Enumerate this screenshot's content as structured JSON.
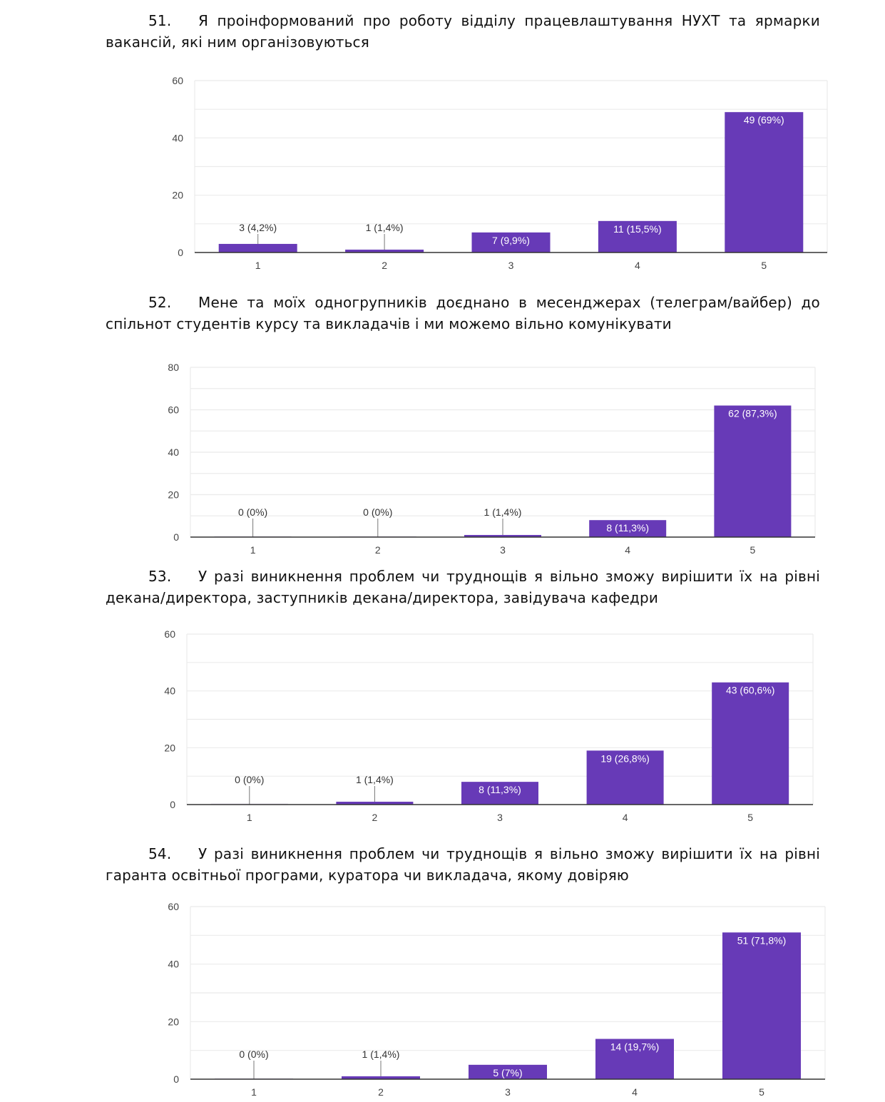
{
  "colors": {
    "bar": "#673ab7",
    "grid": "#ebebeb",
    "axis": "#333333",
    "text": "#111111"
  },
  "questions": [
    {
      "number": "51.",
      "text": "Я проінформований про роботу відділу працевлаштування НУХТ та ярмарки вакансій, які ним організовуються"
    },
    {
      "number": "52.",
      "text": "Мене та моїх одногрупників доєднано в месенджерах (телеграм/вайбер) до спільнот студентів курсу та викладачів і ми можемо вільно комунікувати"
    },
    {
      "number": "53.",
      "text": "У разі виникнення проблем чи труднощів я вільно зможу вирішити їх на рівні декана/директора, заступників декана/директора, завідувача кафедри"
    },
    {
      "number": "54.",
      "text": "У разі виникнення проблем чи труднощів я вільно зможу вирішити їх на рівні гаранта освітньої програми, куратора чи викладача, якому довіряю"
    }
  ],
  "chart_data": [
    {
      "type": "bar",
      "title": "",
      "xlabel": "",
      "ylabel": "",
      "categories": [
        "1",
        "2",
        "3",
        "4",
        "5"
      ],
      "values": [
        3,
        1,
        7,
        11,
        49
      ],
      "labels": [
        "3 (4,2%)",
        "1 (1,4%)",
        "7 (9,9%)",
        "11 (15,5%)",
        "49 (69%)"
      ],
      "ylim": [
        0,
        60
      ],
      "yticks": [
        "0",
        "20",
        "40",
        "60"
      ],
      "minor_step": 10,
      "grid": true,
      "legend": "none"
    },
    {
      "type": "bar",
      "title": "",
      "xlabel": "",
      "ylabel": "",
      "categories": [
        "1",
        "2",
        "3",
        "4",
        "5"
      ],
      "values": [
        0,
        0,
        1,
        8,
        62
      ],
      "labels": [
        "0 (0%)",
        "0 (0%)",
        "1 (1,4%)",
        "8 (11,3%)",
        "62 (87,3%)"
      ],
      "ylim": [
        0,
        80
      ],
      "yticks": [
        "0",
        "20",
        "40",
        "60",
        "80"
      ],
      "minor_step": 10,
      "grid": true,
      "legend": "none"
    },
    {
      "type": "bar",
      "title": "",
      "xlabel": "",
      "ylabel": "",
      "categories": [
        "1",
        "2",
        "3",
        "4",
        "5"
      ],
      "values": [
        0,
        1,
        8,
        19,
        43
      ],
      "labels": [
        "0 (0%)",
        "1 (1,4%)",
        "8 (11,3%)",
        "19 (26,8%)",
        "43 (60,6%)"
      ],
      "ylim": [
        0,
        60
      ],
      "yticks": [
        "0",
        "20",
        "40",
        "60"
      ],
      "minor_step": 10,
      "grid": true,
      "legend": "none"
    },
    {
      "type": "bar",
      "title": "",
      "xlabel": "",
      "ylabel": "",
      "categories": [
        "1",
        "2",
        "3",
        "4",
        "5"
      ],
      "values": [
        0,
        1,
        5,
        14,
        51
      ],
      "labels": [
        "0 (0%)",
        "1 (1,4%)",
        "5 (7%)",
        "14 (19,7%)",
        "51 (71,8%)"
      ],
      "ylim": [
        0,
        60
      ],
      "yticks": [
        "0",
        "20",
        "40",
        "60"
      ],
      "minor_step": 10,
      "grid": true,
      "legend": "none"
    }
  ]
}
